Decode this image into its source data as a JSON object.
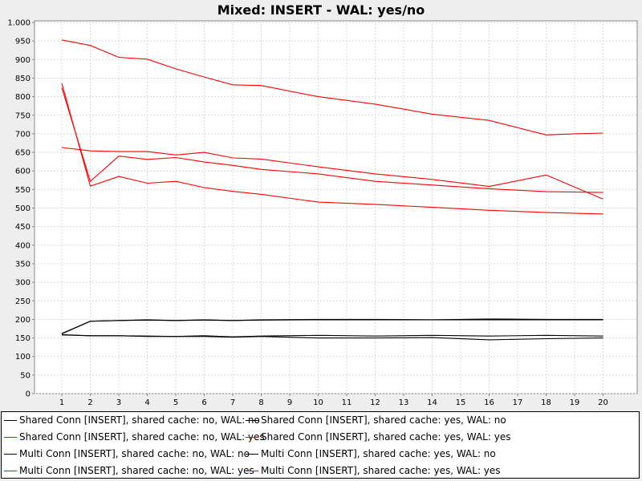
{
  "chart_data": {
    "type": "line",
    "title": "Mixed: INSERT - WAL: yes/no",
    "xlabel": "",
    "ylabel": "",
    "x": [
      1,
      2,
      3,
      4,
      5,
      6,
      7,
      8,
      9,
      10,
      11,
      12,
      13,
      14,
      15,
      16,
      17,
      18,
      19,
      20
    ],
    "x_tick_labels": [
      "1",
      "2",
      "3",
      "4",
      "5",
      "6",
      "7",
      "8",
      "9",
      "10",
      "11",
      "12",
      "13",
      "14",
      "15",
      "16",
      "17",
      "18",
      "19",
      "20"
    ],
    "ylim": [
      0,
      1000
    ],
    "y_ticks": [
      0,
      50,
      100,
      150,
      200,
      250,
      300,
      350,
      400,
      450,
      500,
      550,
      600,
      650,
      700,
      750,
      800,
      850,
      900,
      950,
      1000
    ],
    "y_tick_labels": [
      "0",
      "50",
      "100",
      "150",
      "200",
      "250",
      "300",
      "350",
      "400",
      "450",
      "500",
      "550",
      "600",
      "650",
      "700",
      "750",
      "800",
      "850",
      "900",
      "950",
      "1.000"
    ],
    "grid": true,
    "legend_position": "bottom",
    "series": [
      {
        "name": "Shared Conn [INSERT], shared cache: no, WAL: no",
        "color": "#000000",
        "points": [
          [
            1,
            158
          ],
          [
            2,
            156
          ],
          [
            3,
            156
          ],
          [
            4,
            155
          ],
          [
            5,
            154
          ],
          [
            6,
            156
          ],
          [
            7,
            153
          ],
          [
            8,
            155
          ],
          [
            10,
            157
          ],
          [
            12,
            155
          ],
          [
            14,
            157
          ],
          [
            16,
            155
          ],
          [
            18,
            157
          ],
          [
            20,
            155
          ]
        ]
      },
      {
        "name": "Shared Conn [INSERT], shared cache: yes, WAL: no",
        "color": "#000000",
        "points": [
          [
            1,
            162
          ],
          [
            2,
            195
          ],
          [
            3,
            197
          ],
          [
            4,
            199
          ],
          [
            5,
            197
          ],
          [
            6,
            199
          ],
          [
            7,
            197
          ],
          [
            8,
            199
          ],
          [
            10,
            200
          ],
          [
            12,
            200
          ],
          [
            14,
            199
          ],
          [
            16,
            201
          ],
          [
            18,
            200
          ],
          [
            20,
            200
          ]
        ]
      },
      {
        "name": "Shared Conn [INSERT], shared cache: no, WAL: yes",
        "color": "#ff0000",
        "points": [
          [
            1,
            663
          ],
          [
            2,
            654
          ],
          [
            3,
            652
          ],
          [
            4,
            652
          ],
          [
            5,
            643
          ],
          [
            6,
            650
          ],
          [
            7,
            635
          ],
          [
            8,
            632
          ],
          [
            10,
            611
          ],
          [
            12,
            592
          ],
          [
            14,
            577
          ],
          [
            16,
            558
          ],
          [
            18,
            589
          ],
          [
            20,
            524
          ]
        ]
      },
      {
        "name": "Shared Conn [INSERT], shared cache: yes, WAL: yes",
        "color": "#ff0000",
        "points": [
          [
            1,
            836
          ],
          [
            2,
            559
          ],
          [
            3,
            585
          ],
          [
            4,
            567
          ],
          [
            5,
            572
          ],
          [
            6,
            555
          ],
          [
            7,
            545
          ],
          [
            8,
            537
          ],
          [
            10,
            516
          ],
          [
            12,
            510
          ],
          [
            14,
            502
          ],
          [
            16,
            494
          ],
          [
            18,
            488
          ],
          [
            20,
            484
          ]
        ]
      },
      {
        "name": "Multi Conn [INSERT], shared cache: no, WAL: no",
        "color": "#000000",
        "points": [
          [
            1,
            159
          ],
          [
            2,
            156
          ],
          [
            3,
            156
          ],
          [
            4,
            154
          ],
          [
            5,
            154
          ],
          [
            6,
            154
          ],
          [
            7,
            152
          ],
          [
            8,
            154
          ],
          [
            10,
            150
          ],
          [
            12,
            150
          ],
          [
            14,
            151
          ],
          [
            16,
            145
          ],
          [
            18,
            148
          ],
          [
            20,
            150
          ]
        ]
      },
      {
        "name": "Multi Conn [INSERT], shared cache: yes, WAL: no",
        "color": "#000000",
        "points": [
          [
            1,
            161
          ],
          [
            2,
            195
          ],
          [
            3,
            197
          ],
          [
            4,
            198
          ],
          [
            5,
            197
          ],
          [
            6,
            198
          ],
          [
            7,
            197
          ],
          [
            8,
            198
          ],
          [
            10,
            199
          ],
          [
            12,
            199
          ],
          [
            14,
            199
          ],
          [
            16,
            199
          ],
          [
            18,
            199
          ],
          [
            20,
            199
          ]
        ]
      },
      {
        "name": "Multi Conn [INSERT], shared cache: no, WAL: yes",
        "color": "#ff0000",
        "points": [
          [
            1,
            953
          ],
          [
            2,
            938
          ],
          [
            3,
            906
          ],
          [
            4,
            901
          ],
          [
            5,
            875
          ],
          [
            6,
            853
          ],
          [
            7,
            832
          ],
          [
            8,
            830
          ],
          [
            10,
            800
          ],
          [
            12,
            780
          ],
          [
            14,
            753
          ],
          [
            16,
            736
          ],
          [
            18,
            697
          ],
          [
            19,
            700
          ],
          [
            20,
            702
          ]
        ]
      },
      {
        "name": "Multi Conn [INSERT], shared cache: yes, WAL: yes",
        "color": "#ff0000",
        "points": [
          [
            1,
            824
          ],
          [
            2,
            572
          ],
          [
            3,
            640
          ],
          [
            4,
            631
          ],
          [
            5,
            636
          ],
          [
            6,
            624
          ],
          [
            7,
            615
          ],
          [
            8,
            604
          ],
          [
            10,
            592
          ],
          [
            12,
            572
          ],
          [
            14,
            562
          ],
          [
            16,
            552
          ],
          [
            18,
            544
          ],
          [
            20,
            542
          ]
        ]
      }
    ]
  }
}
